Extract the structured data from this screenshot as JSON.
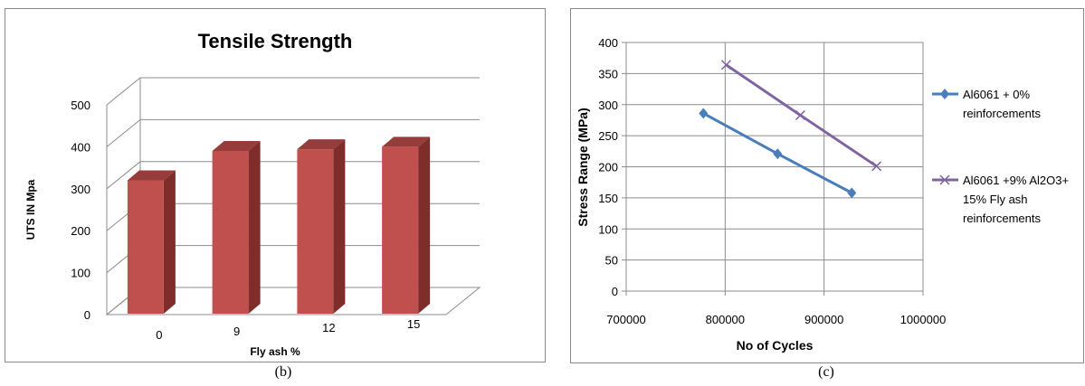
{
  "captions": {
    "left": "(b)",
    "right": "(c)"
  },
  "chart_data": [
    {
      "type": "bar",
      "title": "Tensile Strength",
      "xlabel": "Fly ash %",
      "ylabel": "UTS IN Mpa",
      "categories": [
        "0",
        "9",
        "12",
        "15"
      ],
      "values": [
        318,
        388,
        392,
        398
      ],
      "ylim": [
        0,
        500
      ],
      "yticks": [
        "0",
        "100",
        "200",
        "300",
        "400",
        "500"
      ],
      "grid": true,
      "legend": "none",
      "bar_color": "#c0504d",
      "bar_side_color": "#7f2d2b"
    },
    {
      "type": "line",
      "xlabel": "No of Cycles",
      "ylabel": "Stress Range  (MPa)",
      "xlim": [
        700000,
        1000000
      ],
      "ylim": [
        0,
        400
      ],
      "xticks": [
        "700000",
        "800000",
        "900000",
        "1000000"
      ],
      "yticks": [
        "0",
        "50",
        "100",
        "150",
        "200",
        "250",
        "300",
        "350",
        "400"
      ],
      "grid": true,
      "legend": "right",
      "series": [
        {
          "name": "Al6061 + 0% reinforcements",
          "legend_lines": [
            "Al6061 + 0%",
            "reinforcements"
          ],
          "color": "#4a7ebb",
          "marker": "diamond",
          "x": [
            778000,
            853000,
            928000
          ],
          "y": [
            286,
            221,
            158
          ]
        },
        {
          "name": "Al6061 +9% Al2O3+ 15% Fly ash reinforcements",
          "legend_lines": [
            "Al6061 +9% Al2O3+",
            "15% Fly ash",
            "reinforcements"
          ],
          "color": "#8064a2",
          "marker": "x",
          "x": [
            801000,
            876000,
            953000
          ],
          "y": [
            364,
            283,
            201
          ]
        }
      ]
    }
  ]
}
